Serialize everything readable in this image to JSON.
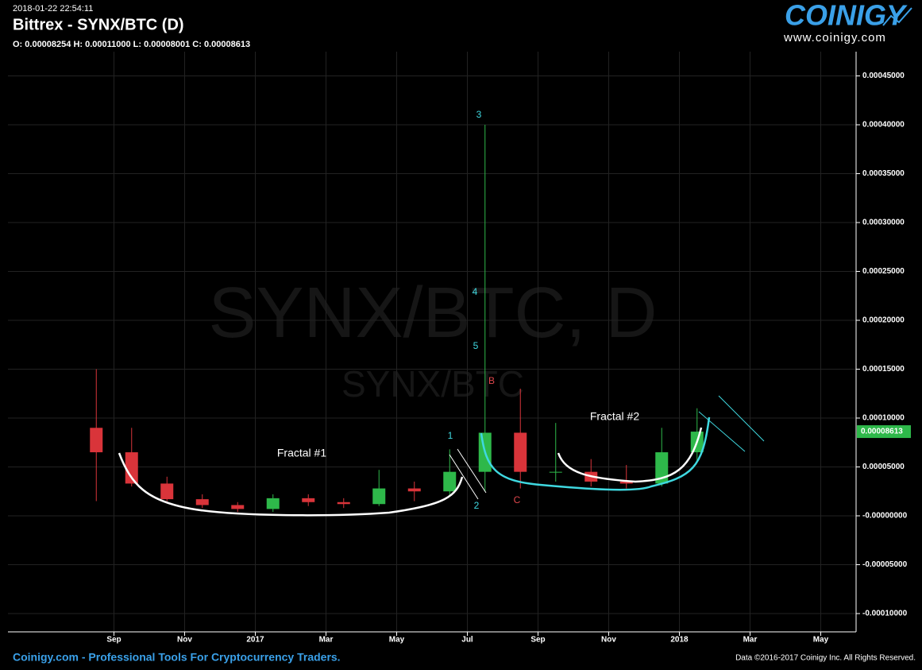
{
  "header": {
    "timestamp": "2018-01-22 22:54:11",
    "title": "Bittrex - SYNX/BTC (D)",
    "ohlc": "O: 0.00008254 H: 0.00011000 L: 0.00008001 C: 0.00008613"
  },
  "logo": {
    "name": "COINIGY",
    "url": "www.coinigy.com"
  },
  "footer": {
    "left": "Coinigy.com - Professional Tools For Cryptocurrency Traders.",
    "right": "Data ©2016-2017 Coinigy Inc. All Rights Reserved."
  },
  "chart_data": {
    "type": "candlestick",
    "watermark": "SYNX/BTC, D",
    "watermark_sub": "SYNX/BTC",
    "x": [
      "2016-08",
      "2016-09",
      "2016-10",
      "2016-11",
      "2016-12",
      "2017-01",
      "2017-02",
      "2017-03",
      "2017-04",
      "2017-05",
      "2017-06",
      "2017-07",
      "2017-08",
      "2017-09",
      "2017-10",
      "2017-11",
      "2017-12",
      "2018-01"
    ],
    "open": [
      9e-05,
      6.5e-05,
      3.3e-05,
      1.7e-05,
      1.1e-05,
      7e-06,
      1.8e-05,
      1.4e-05,
      1.2e-05,
      2.8e-05,
      2.5e-05,
      4.5e-05,
      8.5e-05,
      4.5e-05,
      4.5e-05,
      3.5e-05,
      3.3e-05,
      6.5e-05
    ],
    "high": [
      0.00015,
      9e-05,
      4e-05,
      2.2e-05,
      1.4e-05,
      2.2e-05,
      2.2e-05,
      1.8e-05,
      4.7e-05,
      3.5e-05,
      6.8e-05,
      0.0004,
      0.00013,
      9.5e-05,
      5.8e-05,
      5.2e-05,
      9e-05,
      0.00011
    ],
    "low": [
      1.5e-05,
      3e-05,
      1.5e-05,
      8e-06,
      4e-06,
      4e-06,
      1e-05,
      8e-06,
      1e-05,
      1.5e-05,
      2e-05,
      2.5e-05,
      2.8e-05,
      3.5e-05,
      3e-05,
      2.8e-05,
      3e-05,
      5.5e-05
    ],
    "close": [
      6.5e-05,
      3.3e-05,
      1.7e-05,
      1.1e-05,
      7e-06,
      1.8e-05,
      1.4e-05,
      1.2e-05,
      2.8e-05,
      2.5e-05,
      4.5e-05,
      8.5e-05,
      4.5e-05,
      4.5e-05,
      3.5e-05,
      3.3e-05,
      6.5e-05,
      8.613e-05
    ],
    "up_color": "#2eb84a",
    "down_color": "#d9343a",
    "xlim": [
      "2016-06",
      "2018-06"
    ],
    "xticks": [
      {
        "value": "2016-09",
        "label": "Sep"
      },
      {
        "value": "2016-11",
        "label": "Nov"
      },
      {
        "value": "2017-01",
        "label": "2017"
      },
      {
        "value": "2017-03",
        "label": "Mar"
      },
      {
        "value": "2017-05",
        "label": "May"
      },
      {
        "value": "2017-07",
        "label": "Jul"
      },
      {
        "value": "2017-09",
        "label": "Sep"
      },
      {
        "value": "2017-11",
        "label": "Nov"
      },
      {
        "value": "2018-01",
        "label": "2018"
      },
      {
        "value": "2018-03",
        "label": "Mar"
      },
      {
        "value": "2018-05",
        "label": "May"
      }
    ],
    "ylim": [
      -0.0001187,
      0.0004748
    ],
    "yticks": [
      {
        "value": -0.0001,
        "label": "-0.00010000"
      },
      {
        "value": -5e-05,
        "label": "-0.00005000"
      },
      {
        "value": 0,
        "label": "-0.00000000"
      },
      {
        "value": 5e-05,
        "label": "0.00005000"
      },
      {
        "value": 0.0001,
        "label": "0.00010000"
      },
      {
        "value": 0.00015,
        "label": "0.00015000"
      },
      {
        "value": 0.0002,
        "label": "0.00020000"
      },
      {
        "value": 0.00025,
        "label": "0.00025000"
      },
      {
        "value": 0.0003,
        "label": "0.00030000"
      },
      {
        "value": 0.00035,
        "label": "0.00035000"
      },
      {
        "value": 0.0004,
        "label": "0.00040000"
      },
      {
        "value": 0.00045,
        "label": "0.00045000"
      }
    ],
    "grid": true,
    "annotations": [
      {
        "text": "Fractal #1",
        "color": "#ffffff"
      },
      {
        "text": "Fractal #2",
        "color": "#ffffff"
      },
      {
        "text": "1",
        "color": "#3fd8e0"
      },
      {
        "text": "2",
        "color": "#3fd8e0"
      },
      {
        "text": "3",
        "color": "#3fd8e0"
      },
      {
        "text": "4",
        "color": "#3fd8e0"
      },
      {
        "text": "5",
        "color": "#3fd8e0"
      },
      {
        "text": "B",
        "color": "#e0474c"
      },
      {
        "text": "C",
        "color": "#e0474c"
      }
    ]
  }
}
